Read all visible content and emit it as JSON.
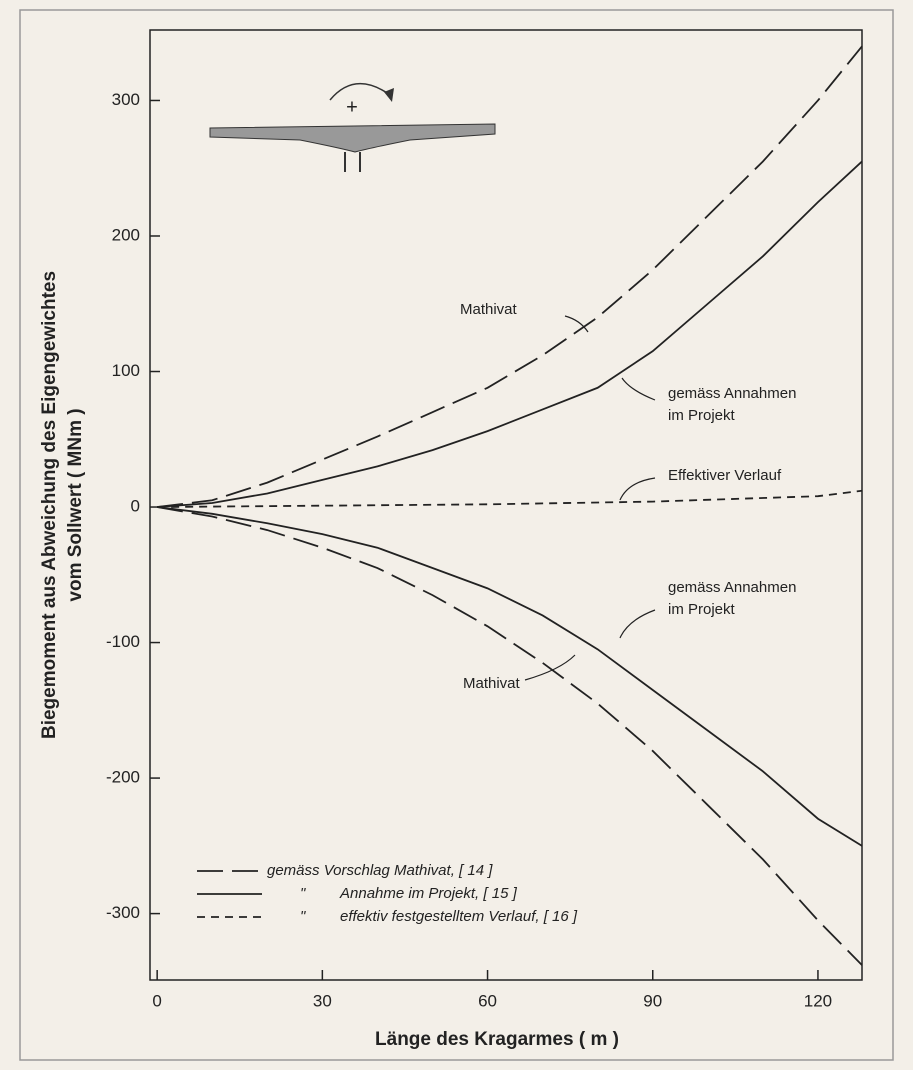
{
  "chart_data": {
    "type": "line",
    "xlabel": "Länge des Kragarmes ( m )",
    "ylabel": [
      "Biegemoment aus Abweichung des Eigengewichtes",
      "vom Sollwert ( MNm )"
    ],
    "xlim": [
      -1.3,
      128
    ],
    "ylim": [
      -349,
      352
    ],
    "xticks": [
      0,
      30,
      60,
      90,
      120
    ],
    "yticks": [
      -300,
      -200,
      -100,
      0,
      100,
      200,
      300
    ],
    "series": [
      {
        "style": "long-dash",
        "color": "#222",
        "x": [
          0,
          10,
          20,
          30,
          40,
          50,
          60,
          70,
          80,
          90,
          100,
          110,
          120,
          128
        ],
        "values": [
          0,
          5,
          18,
          35,
          52,
          70,
          88,
          112,
          140,
          175,
          215,
          255,
          300,
          340
        ]
      },
      {
        "style": "solid",
        "color": "#222",
        "x": [
          0,
          10,
          20,
          30,
          40,
          50,
          60,
          70,
          80,
          90,
          100,
          110,
          120,
          128
        ],
        "values": [
          0,
          3,
          10,
          20,
          30,
          42,
          56,
          72,
          88,
          115,
          150,
          185,
          225,
          255
        ]
      },
      {
        "style": "short-dash",
        "color": "#222",
        "x": [
          0,
          30,
          60,
          90,
          120,
          128
        ],
        "values": [
          0,
          1,
          2,
          4,
          8,
          12
        ]
      },
      {
        "style": "solid",
        "color": "#222",
        "x": [
          0,
          10,
          20,
          30,
          40,
          50,
          60,
          70,
          80,
          90,
          100,
          110,
          120,
          128
        ],
        "values": [
          0,
          -5,
          -12,
          -20,
          -30,
          -45,
          -60,
          -80,
          -105,
          -135,
          -165,
          -195,
          -230,
          -250
        ]
      },
      {
        "style": "long-dash",
        "color": "#222",
        "x": [
          0,
          10,
          20,
          30,
          40,
          50,
          60,
          70,
          80,
          90,
          100,
          110,
          120,
          128
        ],
        "values": [
          0,
          -7,
          -17,
          -30,
          -45,
          -65,
          -88,
          -115,
          -145,
          -180,
          -220,
          -260,
          -305,
          -338
        ]
      }
    ],
    "annotations": [
      {
        "lines": [
          "Mathivat"
        ]
      },
      {
        "lines": [
          "gemäss Annahmen",
          "im Projekt"
        ]
      },
      {
        "lines": [
          "Effektiver Verlauf"
        ]
      },
      {
        "lines": [
          "gemäss Annahmen",
          "im Projekt"
        ]
      },
      {
        "lines": [
          "Mathivat"
        ]
      }
    ],
    "legend": [
      {
        "style": "long-dash",
        "label": "gemäss Vorschlag Mathivat, [ 14 ]"
      },
      {
        "style": "solid",
        "prefix": "\"",
        "label": "Annahme im Projekt, [ 15 ]"
      },
      {
        "style": "short-dash",
        "prefix": "\"",
        "label": "effektiv festgestelltem Verlauf, [ 16 ]"
      }
    ],
    "sign": "+"
  }
}
